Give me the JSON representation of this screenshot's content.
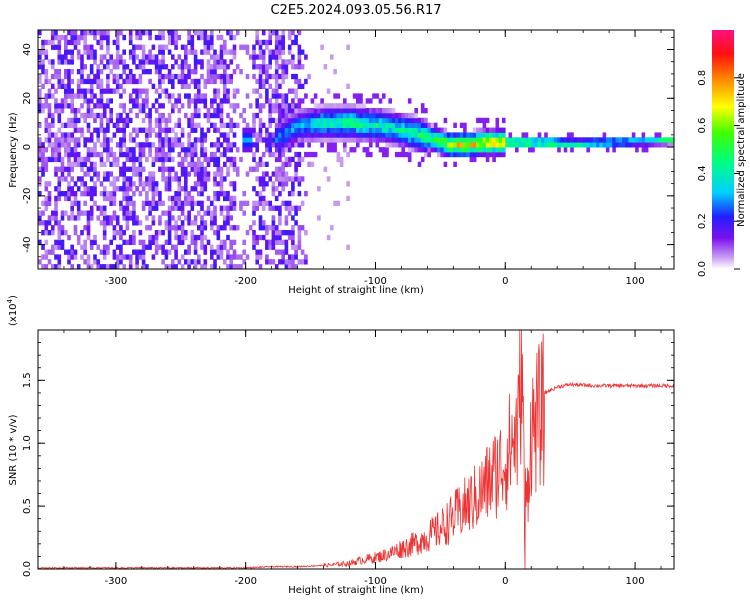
{
  "page": {
    "title": "C2E5.2024.093.05.56.R17"
  },
  "chart_data": [
    {
      "type": "heatmap",
      "title": "C2E5.2024.093.05.56.R17",
      "xlabel": "Height of straight line (km)",
      "ylabel": "Frequency (Hz)",
      "xlim": [
        -360,
        130
      ],
      "ylim": [
        -50,
        48
      ],
      "x_ticks": [
        -300,
        -200,
        -100,
        0,
        100
      ],
      "x_tick_labels": [
        "-300",
        "-200",
        "-100",
        "0",
        "100"
      ],
      "y_ticks": [
        -40,
        -20,
        0,
        20,
        40
      ],
      "y_tick_labels": [
        "-40",
        "-20",
        "0",
        "20",
        "40"
      ],
      "colorbar": {
        "label": "Normalized spectral amplitude",
        "range": [
          0,
          1
        ],
        "ticks": [
          0,
          0.2,
          0.4,
          0.6,
          0.8
        ],
        "tick_labels": [
          "0.0",
          "0.2",
          "0.4",
          "0.6",
          "0.8"
        ]
      },
      "ridge": {
        "x": [
          -175,
          -160,
          -140,
          -120,
          -100,
          -80,
          -60,
          -45,
          -30,
          -15,
          0,
          20,
          50,
          80,
          110,
          130
        ],
        "y": [
          3,
          8,
          9,
          9,
          8,
          6,
          3,
          0,
          0,
          1,
          1,
          1,
          0.5,
          1,
          1.5,
          2
        ],
        "amplitude": [
          0.3,
          0.35,
          0.45,
          0.5,
          0.45,
          0.45,
          0.55,
          0.7,
          0.75,
          0.8,
          0.85,
          0.75,
          0.6,
          0.5,
          0.45,
          0.5
        ]
      },
      "noise_region": {
        "x": [
          -360,
          -150
        ],
        "amplitude": 0.2
      },
      "grid": false
    },
    {
      "type": "line",
      "xlabel": "Height of straight line (km)",
      "ylabel": "SNR (10 * v/v)",
      "y_scale_label": "(x10",
      "y_scale_exponent": "4",
      "xlim": [
        -360,
        130
      ],
      "ylim": [
        0,
        1.9
      ],
      "x_ticks": [
        -300,
        -200,
        -100,
        0,
        100
      ],
      "x_tick_labels": [
        "-300",
        "-200",
        "-100",
        "0",
        "100"
      ],
      "y_ticks": [
        0,
        0.5,
        1.0,
        1.5
      ],
      "y_tick_labels": [
        "0.0",
        "0.5",
        "1.0",
        "1.5"
      ],
      "series": [
        {
          "color": "#ee3333",
          "x": [
            -360,
            -300,
            -250,
            -200,
            -180,
            -160,
            -140,
            -120,
            -110,
            -100,
            -90,
            -80,
            -70,
            -60,
            -50,
            -40,
            -30,
            -20,
            -10,
            0,
            5,
            10,
            13,
            15,
            20,
            25,
            30,
            40,
            50,
            70,
            100,
            130
          ],
          "y": [
            0.01,
            0.01,
            0.01,
            0.01,
            0.02,
            0.02,
            0.03,
            0.05,
            0.08,
            0.1,
            0.13,
            0.18,
            0.22,
            0.28,
            0.35,
            0.45,
            0.55,
            0.65,
            0.8,
            0.95,
            1.1,
            1.2,
            1.9,
            0.35,
            1.2,
            1.3,
            1.4,
            1.45,
            1.47,
            1.46,
            1.46,
            1.46
          ]
        }
      ],
      "grid": false
    }
  ]
}
